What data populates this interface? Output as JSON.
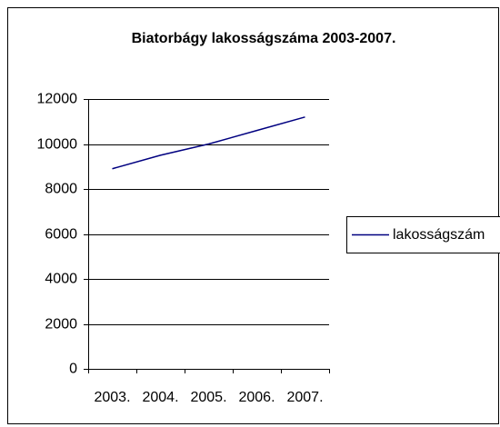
{
  "chart_data": {
    "type": "line",
    "title": "Biatorbágy lakosságszáma 2003-2007.",
    "categories": [
      "2003.",
      "2004.",
      "2005.",
      "2006.",
      "2007."
    ],
    "series": [
      {
        "name": "lakosságszám",
        "color": "#000080",
        "values": [
          8900,
          9500,
          10000,
          10600,
          11200
        ]
      }
    ],
    "ylim": [
      0,
      12000
    ],
    "yticks": [
      0,
      2000,
      4000,
      6000,
      8000,
      10000,
      12000
    ],
    "grid": true,
    "legend": "right"
  }
}
